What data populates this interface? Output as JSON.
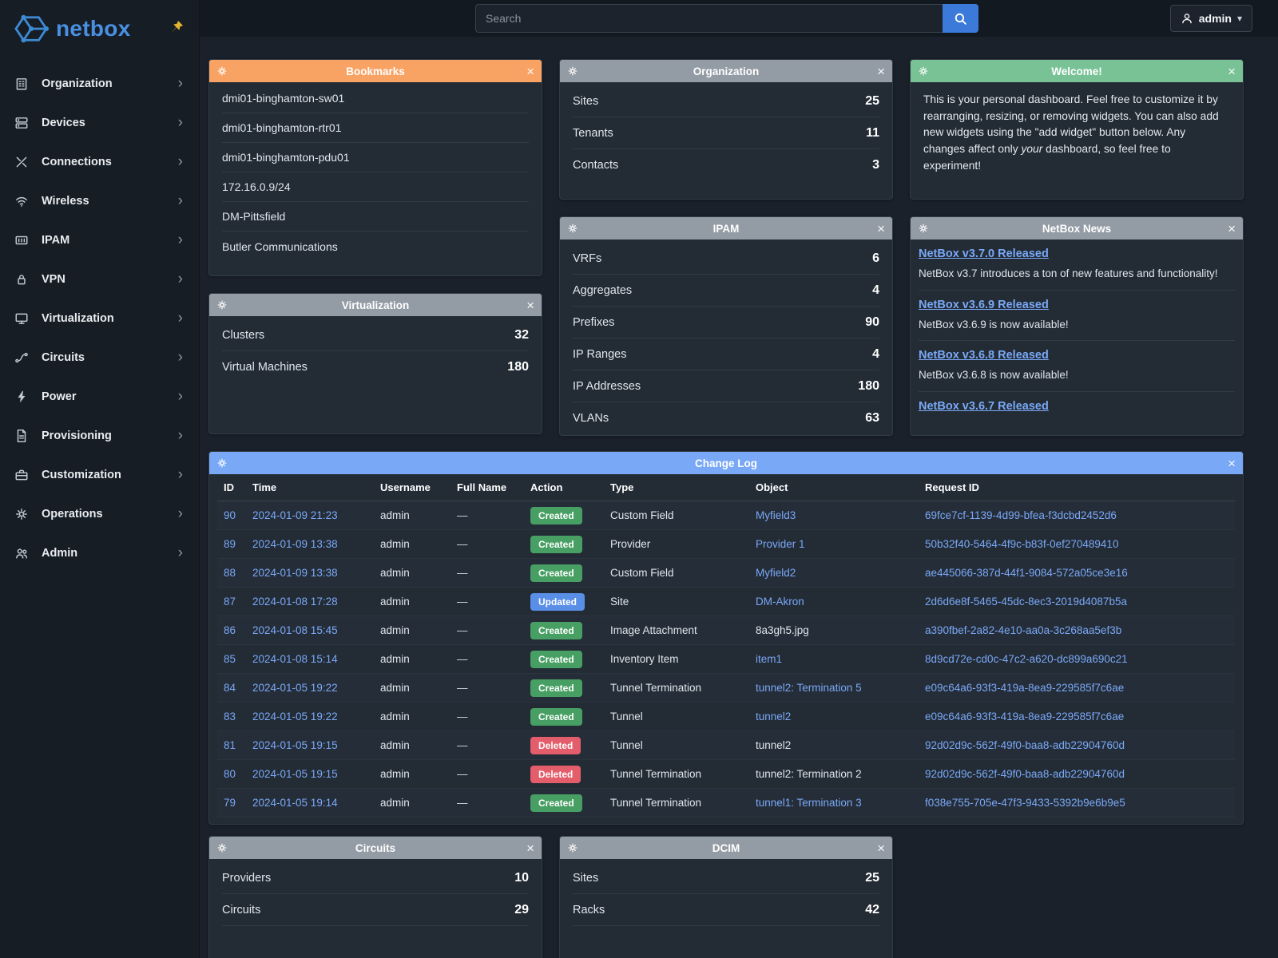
{
  "brand": {
    "name": "netbox"
  },
  "glyphs": {
    "close": "×",
    "chevron_right": "›",
    "caret_down": "▾"
  },
  "colors": {
    "accent_link": "#7aa9f7",
    "header_orange": "#f8a263",
    "header_gray": "#939ba4",
    "header_green": "#78c296",
    "header_blue": "#78a8f6",
    "badge_created": "#479f63",
    "badge_updated": "#5a8fe8",
    "badge_deleted": "#e35d6a",
    "search_button_blue": "#3b7ad9",
    "brand_blue": "#4a90e2"
  },
  "topbar": {
    "search_placeholder": "Search",
    "search_value": "",
    "user_label": "admin"
  },
  "sidebar": {
    "items": [
      {
        "label": "Organization",
        "icon": "organization-icon"
      },
      {
        "label": "Devices",
        "icon": "devices-icon"
      },
      {
        "label": "Connections",
        "icon": "connections-icon"
      },
      {
        "label": "Wireless",
        "icon": "wireless-icon"
      },
      {
        "label": "IPAM",
        "icon": "ipam-icon"
      },
      {
        "label": "VPN",
        "icon": "vpn-icon"
      },
      {
        "label": "Virtualization",
        "icon": "virtualization-icon"
      },
      {
        "label": "Circuits",
        "icon": "circuits-icon"
      },
      {
        "label": "Power",
        "icon": "power-icon"
      },
      {
        "label": "Provisioning",
        "icon": "provisioning-icon"
      },
      {
        "label": "Customization",
        "icon": "customization-icon"
      },
      {
        "label": "Operations",
        "icon": "operations-icon"
      },
      {
        "label": "Admin",
        "icon": "admin-icon"
      }
    ]
  },
  "widgets": {
    "bookmarks": {
      "title": "Bookmarks",
      "items": [
        "dmi01-binghamton-sw01",
        "dmi01-binghamton-rtr01",
        "dmi01-binghamton-pdu01",
        "172.16.0.9/24",
        "DM-Pittsfield",
        "Butler Communications"
      ]
    },
    "organization": {
      "title": "Organization",
      "stats": [
        {
          "label": "Sites",
          "value": "25"
        },
        {
          "label": "Tenants",
          "value": "11"
        },
        {
          "label": "Contacts",
          "value": "3"
        }
      ]
    },
    "welcome": {
      "title": "Welcome!",
      "text_before": "This is your personal dashboard. Feel free to customize it by rearranging, resizing, or removing widgets. You can also add new widgets using the \"add widget\" button below. Any changes affect only ",
      "text_em": "your",
      "text_after": " dashboard, so feel free to experiment!"
    },
    "virtualization": {
      "title": "Virtualization",
      "stats": [
        {
          "label": "Clusters",
          "value": "32"
        },
        {
          "label": "Virtual Machines",
          "value": "180"
        }
      ]
    },
    "ipam": {
      "title": "IPAM",
      "stats": [
        {
          "label": "VRFs",
          "value": "6"
        },
        {
          "label": "Aggregates",
          "value": "4"
        },
        {
          "label": "Prefixes",
          "value": "90"
        },
        {
          "label": "IP Ranges",
          "value": "4"
        },
        {
          "label": "IP Addresses",
          "value": "180"
        },
        {
          "label": "VLANs",
          "value": "63"
        }
      ]
    },
    "news": {
      "title": "NetBox News",
      "items": [
        {
          "title": "NetBox v3.7.0 Released",
          "desc": "NetBox v3.7 introduces a ton of new features and functionality!"
        },
        {
          "title": "NetBox v3.6.9 Released",
          "desc": "NetBox v3.6.9 is now available!"
        },
        {
          "title": "NetBox v3.6.8 Released",
          "desc": "NetBox v3.6.8 is now available!"
        },
        {
          "title": "NetBox v3.6.7 Released",
          "desc": ""
        }
      ]
    },
    "changelog": {
      "title": "Change Log",
      "columns": [
        "ID",
        "Time",
        "Username",
        "Full Name",
        "Action",
        "Type",
        "Object",
        "Request ID"
      ],
      "rows": [
        {
          "id": "90",
          "time": "2024-01-09 21:23",
          "username": "admin",
          "full_name": "—",
          "action": "Created",
          "type": "Custom Field",
          "object": "Myfield3",
          "object_link": true,
          "request_id": "69fce7cf-1139-4d99-bfea-f3dcbd2452d6"
        },
        {
          "id": "89",
          "time": "2024-01-09 13:38",
          "username": "admin",
          "full_name": "—",
          "action": "Created",
          "type": "Provider",
          "object": "Provider 1",
          "object_link": true,
          "request_id": "50b32f40-5464-4f9c-b83f-0ef270489410"
        },
        {
          "id": "88",
          "time": "2024-01-09 13:38",
          "username": "admin",
          "full_name": "—",
          "action": "Created",
          "type": "Custom Field",
          "object": "Myfield2",
          "object_link": true,
          "request_id": "ae445066-387d-44f1-9084-572a05ce3e16"
        },
        {
          "id": "87",
          "time": "2024-01-08 17:28",
          "username": "admin",
          "full_name": "—",
          "action": "Updated",
          "type": "Site",
          "object": "DM-Akron",
          "object_link": true,
          "request_id": "2d6d6e8f-5465-45dc-8ec3-2019d4087b5a"
        },
        {
          "id": "86",
          "time": "2024-01-08 15:45",
          "username": "admin",
          "full_name": "—",
          "action": "Created",
          "type": "Image Attachment",
          "object": "8a3gh5.jpg",
          "object_link": false,
          "request_id": "a390fbef-2a82-4e10-aa0a-3c268aa5ef3b"
        },
        {
          "id": "85",
          "time": "2024-01-08 15:14",
          "username": "admin",
          "full_name": "—",
          "action": "Created",
          "type": "Inventory Item",
          "object": "item1",
          "object_link": true,
          "request_id": "8d9cd72e-cd0c-47c2-a620-dc899a690c21"
        },
        {
          "id": "84",
          "time": "2024-01-05 19:22",
          "username": "admin",
          "full_name": "—",
          "action": "Created",
          "type": "Tunnel Termination",
          "object": "tunnel2: Termination 5",
          "object_link": true,
          "request_id": "e09c64a6-93f3-419a-8ea9-229585f7c6ae"
        },
        {
          "id": "83",
          "time": "2024-01-05 19:22",
          "username": "admin",
          "full_name": "—",
          "action": "Created",
          "type": "Tunnel",
          "object": "tunnel2",
          "object_link": true,
          "request_id": "e09c64a6-93f3-419a-8ea9-229585f7c6ae"
        },
        {
          "id": "81",
          "time": "2024-01-05 19:15",
          "username": "admin",
          "full_name": "—",
          "action": "Deleted",
          "type": "Tunnel",
          "object": "tunnel2",
          "object_link": false,
          "request_id": "92d02d9c-562f-49f0-baa8-adb22904760d"
        },
        {
          "id": "80",
          "time": "2024-01-05 19:15",
          "username": "admin",
          "full_name": "—",
          "action": "Deleted",
          "type": "Tunnel Termination",
          "object": "tunnel2: Termination 2",
          "object_link": false,
          "request_id": "92d02d9c-562f-49f0-baa8-adb22904760d"
        },
        {
          "id": "79",
          "time": "2024-01-05 19:14",
          "username": "admin",
          "full_name": "—",
          "action": "Created",
          "type": "Tunnel Termination",
          "object": "tunnel1: Termination 3",
          "object_link": true,
          "request_id": "f038e755-705e-47f3-9433-5392b9e6b9e5"
        }
      ]
    },
    "circuits": {
      "title": "Circuits",
      "stats": [
        {
          "label": "Providers",
          "value": "10"
        },
        {
          "label": "Circuits",
          "value": "29"
        }
      ]
    },
    "dcim": {
      "title": "DCIM",
      "stats": [
        {
          "label": "Sites",
          "value": "25"
        },
        {
          "label": "Racks",
          "value": "42"
        }
      ]
    }
  }
}
